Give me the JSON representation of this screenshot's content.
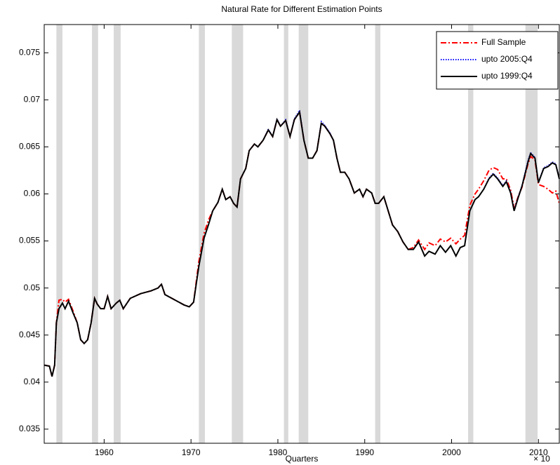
{
  "chart_data": {
    "type": "line",
    "title": "Natural Rate for Different Estimation Points",
    "x_label": "Quarters",
    "x_exponent_label": "× 10",
    "xlim": [
      1953.1,
      2012.4
    ],
    "ylim": [
      0.0335,
      0.078
    ],
    "xticks": [
      1960,
      1970,
      1980,
      1990,
      2000,
      2010
    ],
    "yticks": [
      0.035,
      0.04,
      0.045,
      0.05,
      0.055,
      0.06,
      0.065,
      0.07,
      0.075
    ],
    "grid": false,
    "legend_position": "upper-right",
    "shade_color": "#d9d9d9",
    "shaded_regions": [
      [
        1954.5,
        1955.2
      ],
      [
        1958.6,
        1959.3
      ],
      [
        1961.1,
        1961.9
      ],
      [
        1970.9,
        1971.6
      ],
      [
        1974.7,
        1976.0
      ],
      [
        1980.7,
        1981.2
      ],
      [
        1982.4,
        1983.5
      ],
      [
        1991.2,
        1991.8
      ],
      [
        2001.9,
        2002.5
      ],
      [
        2008.5,
        2009.9
      ]
    ],
    "x": [
      1953.1,
      1953.7,
      1954.0,
      1954.3,
      1954.5,
      1954.8,
      1955.2,
      1955.5,
      1955.9,
      1956.4,
      1956.9,
      1957.3,
      1957.7,
      1958.1,
      1958.5,
      1958.9,
      1959.2,
      1959.6,
      1960.0,
      1960.4,
      1960.8,
      1961.4,
      1961.8,
      1962.2,
      1963.0,
      1964.2,
      1965.4,
      1966.2,
      1966.6,
      1967.0,
      1967.8,
      1968.6,
      1969.2,
      1969.8,
      1970.3,
      1970.9,
      1971.5,
      1972.0,
      1972.5,
      1973.1,
      1973.6,
      1974.0,
      1974.5,
      1974.9,
      1975.3,
      1975.7,
      1976.3,
      1976.7,
      1977.3,
      1977.7,
      1978.3,
      1978.9,
      1979.4,
      1979.9,
      1980.3,
      1980.9,
      1981.4,
      1981.9,
      1982.5,
      1983.0,
      1983.5,
      1984.0,
      1984.5,
      1985.0,
      1985.4,
      1986.0,
      1986.4,
      1986.8,
      1987.2,
      1987.7,
      1988.2,
      1988.8,
      1989.4,
      1989.8,
      1990.2,
      1990.8,
      1991.2,
      1991.6,
      1992.2,
      1992.7,
      1993.2,
      1993.8,
      1994.4,
      1995.0,
      1995.6,
      1996.2,
      1996.9,
      1997.4,
      1998.1,
      1998.7,
      1999.3,
      1999.9,
      2000.5,
      2001.0,
      2001.5,
      2002.1,
      2002.7,
      2003.1,
      2003.7,
      2004.3,
      2004.8,
      2005.3,
      2005.9,
      2006.3,
      2006.8,
      2007.2,
      2007.7,
      2008.1,
      2008.8,
      2009.1,
      2009.6,
      2010.0,
      2010.6,
      2011.1,
      2011.6,
      2012.0,
      2012.4
    ],
    "series": [
      {
        "name": "Full Sample",
        "color": "#ff0000",
        "style": "dashdot",
        "values": [
          0.0418,
          0.0417,
          0.0406,
          0.0418,
          0.0463,
          0.0487,
          0.0488,
          0.0485,
          0.0488,
          0.0476,
          0.0463,
          0.0445,
          0.0441,
          0.0445,
          0.0463,
          0.0489,
          0.0483,
          0.0478,
          0.0478,
          0.0491,
          0.0478,
          0.0484,
          0.0487,
          0.0478,
          0.0489,
          0.0494,
          0.0497,
          0.05,
          0.0504,
          0.0493,
          0.0489,
          0.0485,
          0.0482,
          0.048,
          0.0485,
          0.0528,
          0.0558,
          0.0572,
          0.0582,
          0.0591,
          0.0605,
          0.0594,
          0.0597,
          0.059,
          0.0586,
          0.0616,
          0.0627,
          0.0646,
          0.0653,
          0.065,
          0.0657,
          0.0668,
          0.0661,
          0.0679,
          0.0672,
          0.0678,
          0.0661,
          0.0679,
          0.0687,
          0.0657,
          0.0638,
          0.0638,
          0.0646,
          0.0675,
          0.0672,
          0.0664,
          0.0657,
          0.0638,
          0.0623,
          0.0623,
          0.0616,
          0.0601,
          0.0605,
          0.0597,
          0.0605,
          0.0601,
          0.059,
          0.059,
          0.0597,
          0.0582,
          0.0567,
          0.056,
          0.0549,
          0.0541,
          0.0543,
          0.0551,
          0.0541,
          0.0548,
          0.0545,
          0.0552,
          0.0549,
          0.0553,
          0.0547,
          0.0552,
          0.0556,
          0.0588,
          0.06,
          0.0605,
          0.0614,
          0.0625,
          0.0628,
          0.0626,
          0.0616,
          0.0616,
          0.0604,
          0.0585,
          0.0598,
          0.0607,
          0.0632,
          0.064,
          0.0636,
          0.061,
          0.0608,
          0.0605,
          0.0601,
          0.0603,
          0.059
        ]
      },
      {
        "name": "upto 2005:Q4",
        "color": "#0000ff",
        "style": "dotted",
        "values": [
          0.0418,
          0.0417,
          0.0406,
          0.0418,
          0.0463,
          0.0478,
          0.0484,
          0.0478,
          0.0486,
          0.0474,
          0.0463,
          0.0445,
          0.0441,
          0.0445,
          0.0463,
          0.0489,
          0.0483,
          0.0478,
          0.0478,
          0.0491,
          0.0478,
          0.0484,
          0.0487,
          0.0478,
          0.0489,
          0.0494,
          0.0497,
          0.05,
          0.0504,
          0.0493,
          0.0489,
          0.0485,
          0.0482,
          0.048,
          0.0485,
          0.0523,
          0.0553,
          0.0567,
          0.0582,
          0.0591,
          0.0605,
          0.0594,
          0.0597,
          0.059,
          0.0586,
          0.0616,
          0.0627,
          0.0646,
          0.0653,
          0.065,
          0.0657,
          0.0669,
          0.0661,
          0.068,
          0.0672,
          0.0679,
          0.0661,
          0.068,
          0.0689,
          0.0657,
          0.0638,
          0.0638,
          0.0646,
          0.0677,
          0.0673,
          0.0665,
          0.0657,
          0.0638,
          0.0623,
          0.0623,
          0.0616,
          0.0601,
          0.0605,
          0.0597,
          0.0605,
          0.0601,
          0.059,
          0.059,
          0.0597,
          0.0582,
          0.0567,
          0.056,
          0.0549,
          0.0541,
          0.0541,
          0.0549,
          0.0534,
          0.0539,
          0.0536,
          0.0545,
          0.0538,
          0.0545,
          0.0534,
          0.0543,
          0.0545,
          0.0582,
          0.0594,
          0.0597,
          0.0605,
          0.0617,
          0.0622,
          0.0617,
          0.0609,
          0.0614,
          0.0602,
          0.0583,
          0.0598,
          0.0609,
          0.0636,
          0.0644,
          0.0639,
          0.0613,
          0.0628,
          0.063,
          0.0634,
          0.0632,
          0.0617
        ]
      },
      {
        "name": "upto 1999:Q4",
        "color": "#000000",
        "style": "solid",
        "values": [
          0.0418,
          0.0417,
          0.0406,
          0.0418,
          0.0463,
          0.0478,
          0.0484,
          0.0478,
          0.0486,
          0.0474,
          0.0463,
          0.0445,
          0.0441,
          0.0445,
          0.0463,
          0.0489,
          0.0483,
          0.0478,
          0.0478,
          0.0491,
          0.0478,
          0.0484,
          0.0487,
          0.0478,
          0.0489,
          0.0494,
          0.0497,
          0.05,
          0.0504,
          0.0493,
          0.0489,
          0.0485,
          0.0482,
          0.048,
          0.0485,
          0.0523,
          0.0553,
          0.0567,
          0.0582,
          0.0591,
          0.0605,
          0.0594,
          0.0597,
          0.059,
          0.0586,
          0.0616,
          0.0627,
          0.0646,
          0.0653,
          0.065,
          0.0657,
          0.0668,
          0.0661,
          0.0679,
          0.0672,
          0.0678,
          0.0661,
          0.0679,
          0.0687,
          0.0657,
          0.0638,
          0.0638,
          0.0646,
          0.0675,
          0.0672,
          0.0664,
          0.0657,
          0.0638,
          0.0623,
          0.0623,
          0.0616,
          0.0601,
          0.0605,
          0.0597,
          0.0605,
          0.0601,
          0.059,
          0.059,
          0.0597,
          0.0582,
          0.0567,
          0.056,
          0.0549,
          0.0541,
          0.0541,
          0.0549,
          0.0534,
          0.0539,
          0.0536,
          0.0545,
          0.0538,
          0.0545,
          0.0534,
          0.0543,
          0.0545,
          0.0582,
          0.0594,
          0.0597,
          0.0605,
          0.0616,
          0.0621,
          0.0616,
          0.0608,
          0.0613,
          0.0601,
          0.0582,
          0.0597,
          0.0608,
          0.0634,
          0.0643,
          0.0638,
          0.0612,
          0.0627,
          0.0629,
          0.0633,
          0.0631,
          0.0616
        ]
      }
    ]
  }
}
